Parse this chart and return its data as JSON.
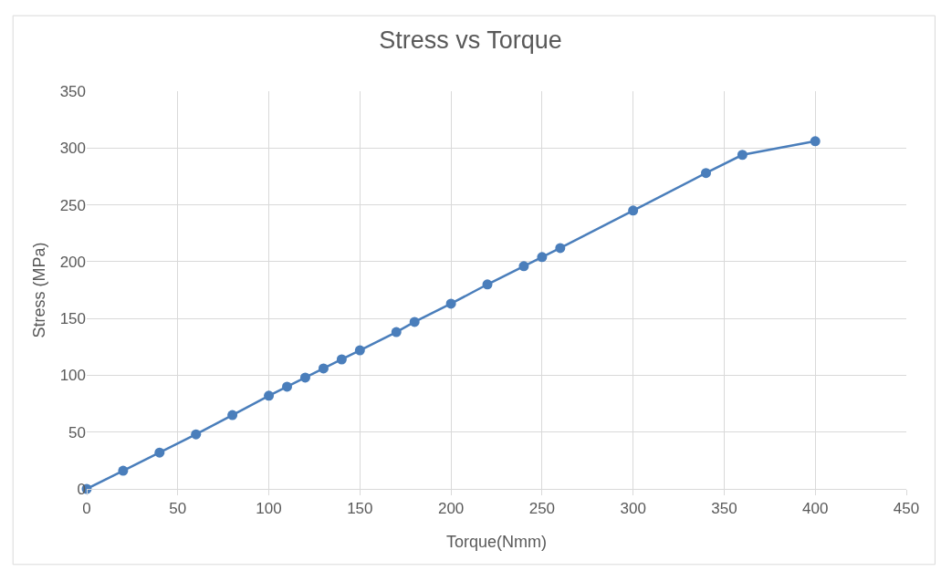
{
  "chart_data": {
    "type": "line",
    "title": "Stress vs Torque",
    "xlabel": "Torque(Nmm)",
    "ylabel": "Stress (MPa)",
    "x": [
      0,
      20,
      40,
      60,
      80,
      100,
      110,
      120,
      130,
      140,
      150,
      170,
      180,
      200,
      220,
      240,
      250,
      260,
      300,
      340,
      360,
      400
    ],
    "series": [
      {
        "color": "#4a7ebb",
        "values": [
          0,
          16,
          32,
          48,
          65,
          82,
          90,
          98,
          106,
          114,
          122,
          138,
          147,
          163,
          180,
          196,
          204,
          212,
          245,
          278,
          294,
          306
        ]
      }
    ],
    "xlim": [
      0,
      450
    ],
    "xticks": [
      0,
      50,
      100,
      150,
      200,
      250,
      300,
      350,
      400,
      450
    ],
    "ylim": [
      0,
      350
    ],
    "yticks": [
      0,
      50,
      100,
      150,
      200,
      250,
      300,
      350
    ],
    "grid": true,
    "legend": false,
    "marker": "circle",
    "line_style": "solid"
  }
}
